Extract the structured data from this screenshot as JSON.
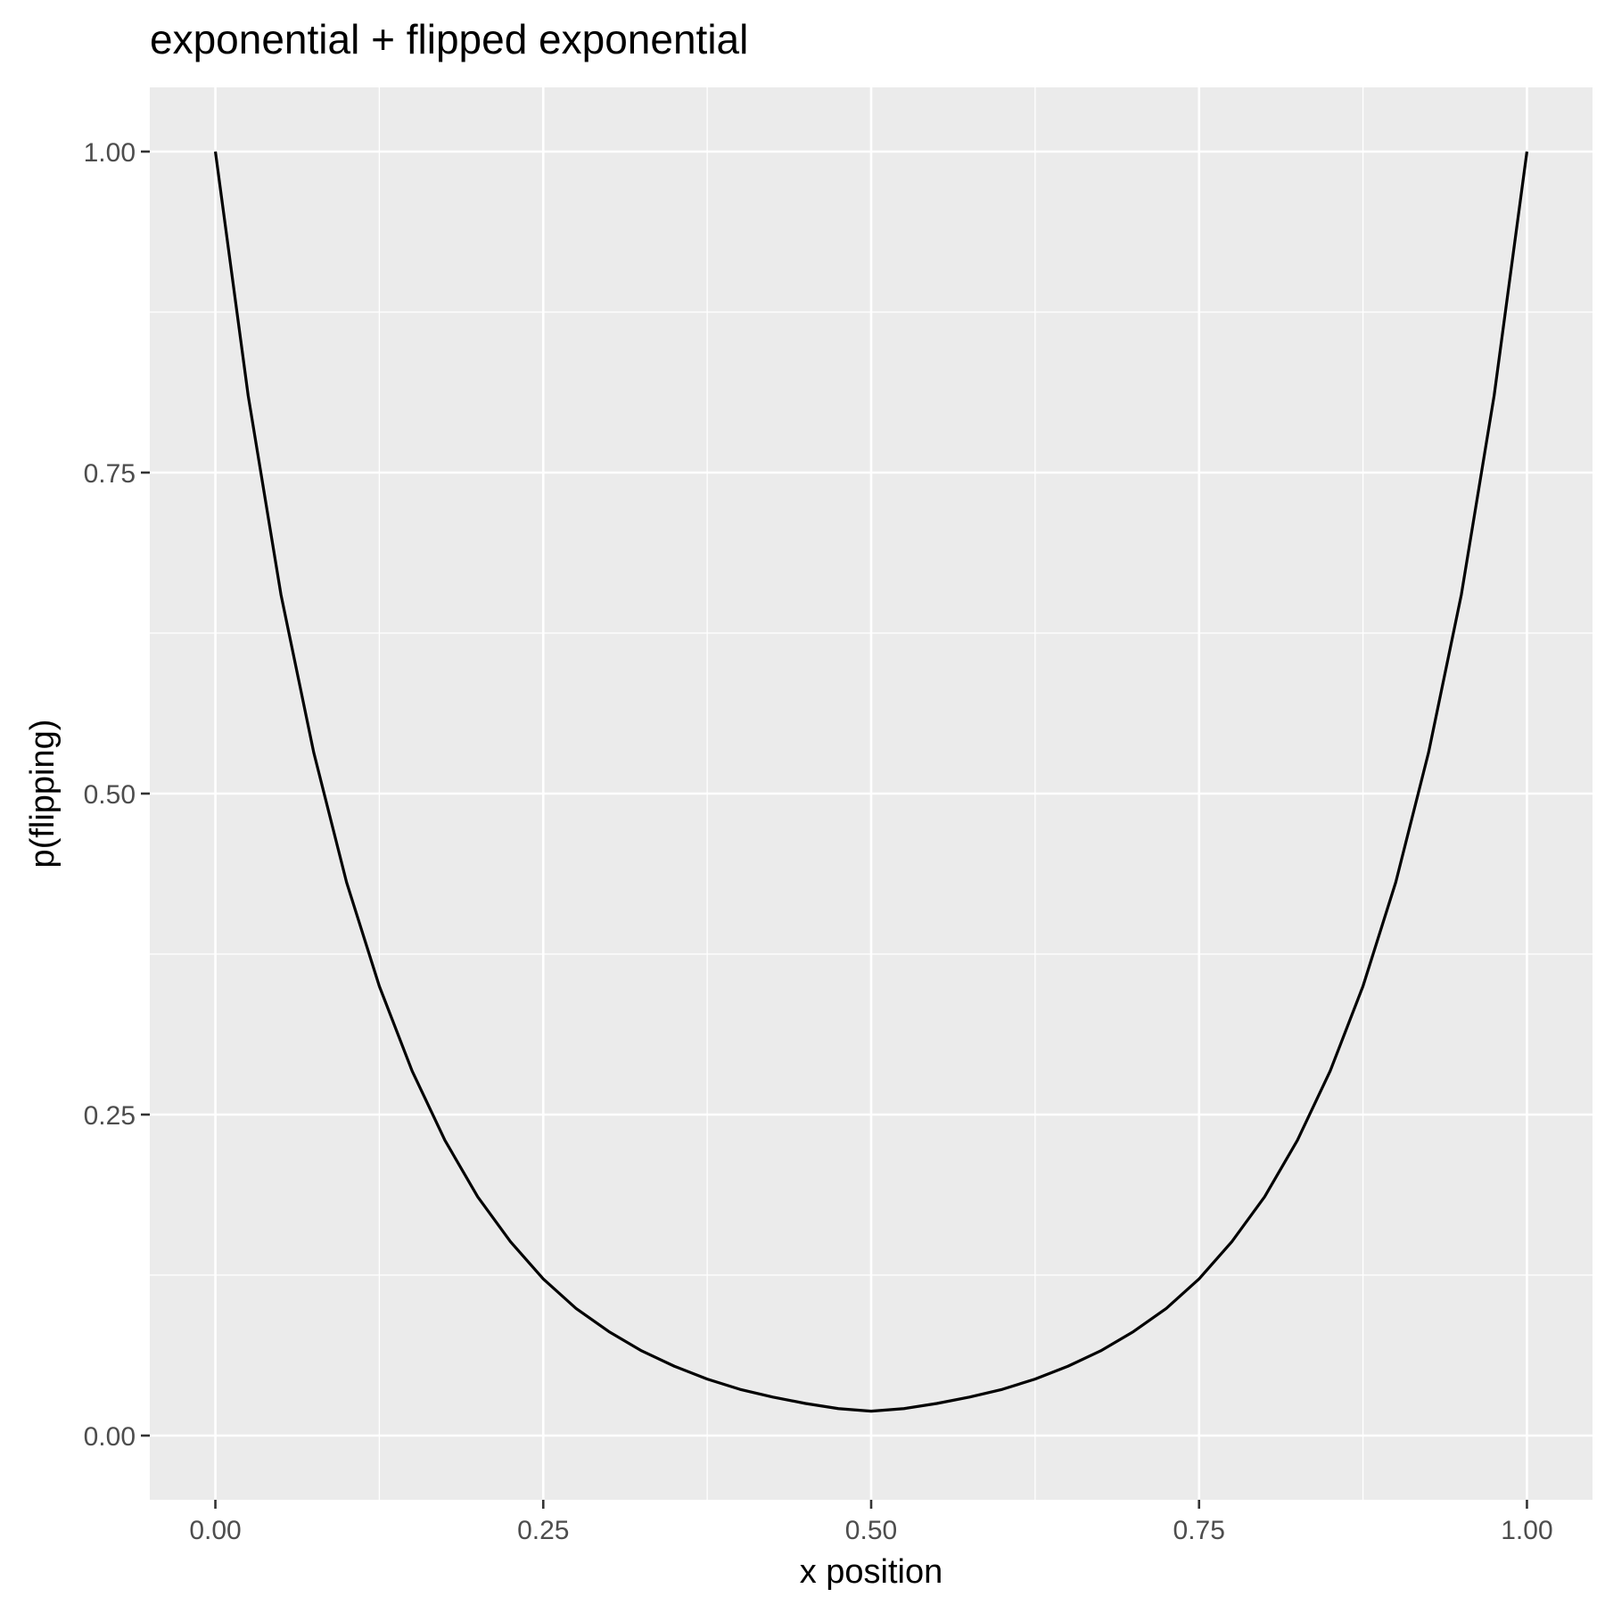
{
  "chart_data": {
    "type": "line",
    "title": "exponential + flipped exponential",
    "xlabel": "x position",
    "ylabel": "p(flipping)",
    "xlim": [
      -0.05,
      1.05
    ],
    "ylim": [
      -0.05,
      1.05
    ],
    "x_ticks": [
      0,
      0.25,
      0.5,
      0.75,
      1
    ],
    "x_tick_labels": [
      "0.00",
      "0.25",
      "0.50",
      "0.75",
      "1.00"
    ],
    "y_ticks": [
      0,
      0.25,
      0.5,
      0.75,
      1
    ],
    "y_tick_labels": [
      "0.00",
      "0.25",
      "0.50",
      "0.75",
      "1.00"
    ],
    "grid": true,
    "series": [
      {
        "color": "#000000",
        "x": [
          0,
          0.025,
          0.05,
          0.075,
          0.1,
          0.125,
          0.15,
          0.175,
          0.2,
          0.225,
          0.25,
          0.275,
          0.3,
          0.325,
          0.35,
          0.375,
          0.4,
          0.425,
          0.45,
          0.475,
          0.5,
          0.525,
          0.55,
          0.575,
          0.6,
          0.625,
          0.65,
          0.675,
          0.7,
          0.725,
          0.75,
          0.775,
          0.8,
          0.825,
          0.85,
          0.875,
          0.9,
          0.925,
          0.95,
          0.975,
          1
        ],
        "y": [
          1.0,
          0.81,
          0.655,
          0.532,
          0.431,
          0.35,
          0.284,
          0.23,
          0.186,
          0.151,
          0.122,
          0.099,
          0.081,
          0.066,
          0.054,
          0.044,
          0.036,
          0.03,
          0.025,
          0.021,
          0.019,
          0.021,
          0.025,
          0.03,
          0.036,
          0.044,
          0.054,
          0.066,
          0.081,
          0.099,
          0.122,
          0.151,
          0.186,
          0.23,
          0.284,
          0.35,
          0.431,
          0.532,
          0.655,
          0.81,
          1.0
        ]
      }
    ]
  }
}
